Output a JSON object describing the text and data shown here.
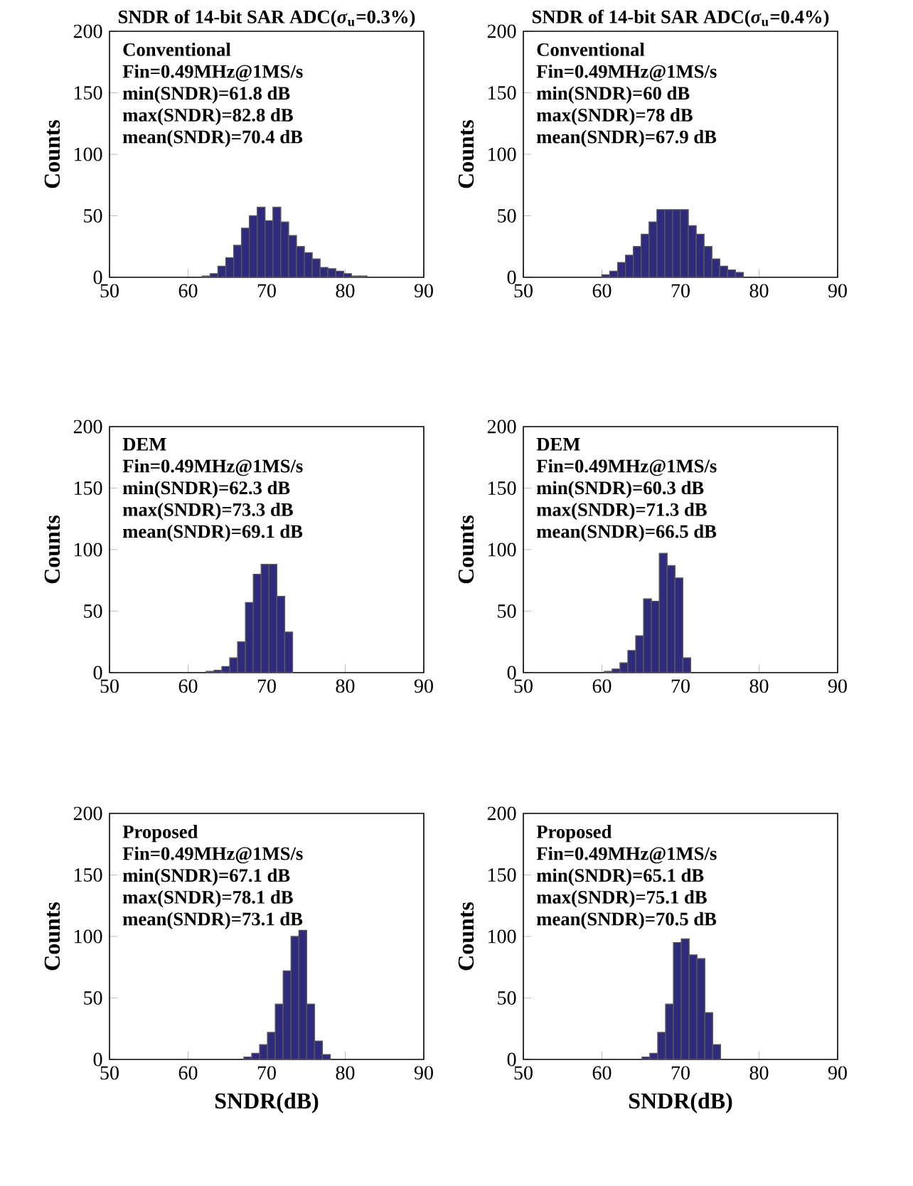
{
  "chart_data": [
    {
      "type": "histogram",
      "title": "SNDR of 14-bit SAR ADC(*σ*$_{u}$=0.3%)",
      "ylabel": "Counts",
      "annotations": [
        "Conventional",
        "Fin=0.49MHz@1MS/s",
        "min(SNDR)=61.8 dB",
        "max(SNDR)=82.8 dB",
        "mean(SNDR)=70.4 dB"
      ],
      "bins": [
        61.8,
        62.8,
        63.8,
        64.8,
        65.8,
        66.8,
        67.8,
        68.8,
        69.8,
        70.8,
        71.8,
        72.8,
        73.8,
        74.8,
        75.8,
        76.8,
        77.8,
        78.8,
        79.8,
        80.8,
        81.8,
        82.8
      ],
      "values": [
        1,
        3,
        9,
        16,
        26,
        40,
        50,
        57,
        46,
        57,
        45,
        34,
        25,
        20,
        15,
        8,
        7,
        5,
        3,
        1,
        1
      ],
      "color": "#2e2b7c",
      "xlim": [
        50,
        90
      ],
      "ylim": [
        0,
        200
      ],
      "xticks": [
        50,
        60,
        70,
        80,
        90
      ],
      "yticks": [
        0,
        50,
        100,
        150,
        200
      ]
    },
    {
      "type": "histogram",
      "title": "SNDR of 14-bit SAR ADC(*σ*$_{u}$=0.4%)",
      "ylabel": "Counts",
      "annotations": [
        "Conventional",
        "Fin=0.49MHz@1MS/s",
        "min(SNDR)=60 dB",
        "max(SNDR)=78 dB",
        "mean(SNDR)=67.9 dB"
      ],
      "bins": [
        60,
        61,
        62,
        63,
        64,
        65,
        66,
        67,
        68,
        69,
        70,
        71,
        72,
        73,
        74,
        75,
        76,
        77,
        78
      ],
      "values": [
        2,
        5,
        12,
        18,
        25,
        35,
        45,
        55,
        55,
        55,
        55,
        42,
        35,
        25,
        15,
        9,
        6,
        4
      ],
      "color": "#2e2b7c",
      "xlim": [
        50,
        90
      ],
      "ylim": [
        0,
        200
      ],
      "xticks": [
        50,
        60,
        70,
        80,
        90
      ],
      "yticks": [
        0,
        50,
        100,
        150,
        200
      ]
    },
    {
      "type": "histogram",
      "ylabel": "Counts",
      "annotations": [
        "DEM",
        "Fin=0.49MHz@1MS/s",
        "min(SNDR)=62.3 dB",
        "max(SNDR)=73.3 dB",
        "mean(SNDR)=69.1 dB"
      ],
      "bins": [
        62.3,
        63.3,
        64.3,
        65.3,
        66.3,
        67.3,
        68.3,
        69.3,
        70.3,
        71.3,
        72.3,
        73.3
      ],
      "values": [
        1,
        2,
        5,
        12,
        25,
        57,
        80,
        88,
        88,
        62,
        33
      ],
      "color": "#2e2b7c",
      "xlim": [
        50,
        90
      ],
      "ylim": [
        0,
        200
      ],
      "xticks": [
        50,
        60,
        70,
        80,
        90
      ],
      "yticks": [
        0,
        50,
        100,
        150,
        200
      ]
    },
    {
      "type": "histogram",
      "ylabel": "Counts",
      "annotations": [
        "DEM",
        "Fin=0.49MHz@1MS/s",
        "min(SNDR)=60.3 dB",
        "max(SNDR)=71.3 dB",
        "mean(SNDR)=66.5 dB"
      ],
      "bins": [
        60.3,
        61.3,
        62.3,
        63.3,
        64.3,
        65.3,
        66.3,
        67.3,
        68.3,
        69.3,
        70.3,
        71.3
      ],
      "values": [
        1,
        3,
        8,
        18,
        30,
        60,
        58,
        97,
        87,
        77,
        12
      ],
      "color": "#2e2b7c",
      "xlim": [
        50,
        90
      ],
      "ylim": [
        0,
        200
      ],
      "xticks": [
        50,
        60,
        70,
        80,
        90
      ],
      "yticks": [
        0,
        50,
        100,
        150,
        200
      ]
    },
    {
      "type": "histogram",
      "xlabel": "SNDR(dB)",
      "ylabel": "Counts",
      "annotations": [
        "Proposed",
        "Fin=0.49MHz@1MS/s",
        "min(SNDR)=67.1 dB",
        "max(SNDR)=78.1 dB",
        "mean(SNDR)=73.1 dB"
      ],
      "bins": [
        67.1,
        68.1,
        69.1,
        70.1,
        71.1,
        72.1,
        73.1,
        74.1,
        75.1,
        76.1,
        77.1,
        78.1
      ],
      "values": [
        2,
        5,
        12,
        22,
        45,
        72,
        100,
        105,
        45,
        15,
        4
      ],
      "color": "#2e2b7c",
      "xlim": [
        50,
        90
      ],
      "ylim": [
        0,
        200
      ],
      "xticks": [
        50,
        60,
        70,
        80,
        90
      ],
      "yticks": [
        0,
        50,
        100,
        150,
        200
      ]
    },
    {
      "type": "histogram",
      "xlabel": "SNDR(dB)",
      "ylabel": "Counts",
      "annotations": [
        "Proposed",
        "Fin=0.49MHz@1MS/s",
        "min(SNDR)=65.1 dB",
        "max(SNDR)=75.1 dB",
        "mean(SNDR)=70.5 dB"
      ],
      "bins": [
        65.1,
        66.1,
        67.1,
        68.1,
        69.1,
        70.1,
        71.1,
        72.1,
        73.1,
        74.1,
        75.1
      ],
      "values": [
        2,
        5,
        22,
        45,
        95,
        98,
        85,
        82,
        38,
        12
      ],
      "color": "#2e2b7c",
      "xlim": [
        50,
        90
      ],
      "ylim": [
        0,
        200
      ],
      "xticks": [
        50,
        60,
        70,
        80,
        90
      ],
      "yticks": [
        0,
        50,
        100,
        150,
        200
      ]
    }
  ]
}
